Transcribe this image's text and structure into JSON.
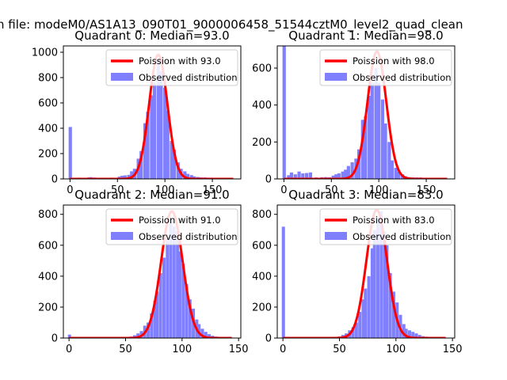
{
  "figure": {
    "suptitle": "n file: modeM0/AS1A13_090T01_9000006458_51544cztM0_level2_quad_clean"
  },
  "legend": {
    "observed_label": "Observed distribution"
  },
  "colors": {
    "poisson_line": "#ff0000",
    "histogram": "#8080ff",
    "axis": "#000000"
  },
  "chart_data": [
    {
      "type": "bar",
      "title": "Quadrant 0: Median=93.0",
      "poisson_label": "Poission with 93.0",
      "median": 93.0,
      "bin_width": 3.5,
      "xlim": [
        -7,
        180
      ],
      "ylim": [
        0,
        1050
      ],
      "xticks": [
        0,
        50,
        100,
        150
      ],
      "yticks": [
        0,
        200,
        400,
        600,
        800,
        1000
      ],
      "zero_bin": 410,
      "curve_peak": 980,
      "curve_sigma": 9.6,
      "hist": [
        [
          10,
          10
        ],
        [
          20,
          12
        ],
        [
          22,
          14
        ],
        [
          26,
          11
        ],
        [
          30,
          9
        ],
        [
          34,
          8
        ],
        [
          40,
          9
        ],
        [
          44,
          10
        ],
        [
          48,
          9
        ],
        [
          52,
          18
        ],
        [
          55,
          25
        ],
        [
          58,
          28
        ],
        [
          62,
          32
        ],
        [
          65,
          60
        ],
        [
          68,
          80
        ],
        [
          72,
          160
        ],
        [
          75,
          220
        ],
        [
          79,
          440
        ],
        [
          82,
          530
        ],
        [
          86,
          660
        ],
        [
          89,
          760
        ],
        [
          93,
          940
        ],
        [
          96,
          850
        ],
        [
          100,
          720
        ],
        [
          103,
          540
        ],
        [
          107,
          300
        ],
        [
          110,
          230
        ],
        [
          114,
          130
        ],
        [
          117,
          80
        ],
        [
          121,
          60
        ],
        [
          124,
          40
        ],
        [
          128,
          30
        ],
        [
          131,
          20
        ],
        [
          135,
          15
        ],
        [
          138,
          12
        ],
        [
          142,
          12
        ],
        [
          145,
          10
        ],
        [
          149,
          10
        ],
        [
          152,
          9
        ],
        [
          156,
          8
        ],
        [
          159,
          8
        ],
        [
          163,
          8
        ]
      ]
    },
    {
      "type": "bar",
      "title": "Quadrant 1: Median=98.0",
      "poisson_label": "Poission with 98.0",
      "median": 98.0,
      "bin_width": 3.5,
      "xlim": [
        -7,
        180
      ],
      "ylim": [
        0,
        720
      ],
      "xticks": [
        0,
        50,
        100,
        150
      ],
      "yticks": [
        0,
        200,
        400,
        600
      ],
      "zero_bin": 720,
      "curve_peak": 690,
      "curve_sigma": 9.9,
      "hist": [
        [
          5,
          20
        ],
        [
          8,
          35
        ],
        [
          12,
          25
        ],
        [
          16,
          40
        ],
        [
          20,
          30
        ],
        [
          24,
          32
        ],
        [
          28,
          35
        ],
        [
          34,
          8
        ],
        [
          40,
          9
        ],
        [
          44,
          10
        ],
        [
          48,
          9
        ],
        [
          52,
          18
        ],
        [
          55,
          25
        ],
        [
          58,
          30
        ],
        [
          62,
          40
        ],
        [
          65,
          50
        ],
        [
          68,
          70
        ],
        [
          72,
          90
        ],
        [
          76,
          110
        ],
        [
          79,
          160
        ],
        [
          83,
          320
        ],
        [
          86,
          340
        ],
        [
          90,
          450
        ],
        [
          93,
          520
        ],
        [
          97,
          600
        ],
        [
          100,
          520
        ],
        [
          104,
          430
        ],
        [
          107,
          300
        ],
        [
          111,
          200
        ],
        [
          114,
          100
        ],
        [
          118,
          60
        ],
        [
          121,
          40
        ],
        [
          125,
          25
        ],
        [
          128,
          15
        ],
        [
          132,
          10
        ],
        [
          136,
          8
        ],
        [
          140,
          8
        ],
        [
          144,
          8
        ],
        [
          148,
          6
        ],
        [
          152,
          6
        ],
        [
          156,
          5
        ]
      ]
    },
    {
      "type": "bar",
      "title": "Quadrant 2: Median=91.0",
      "poisson_label": "Poission with 91.0",
      "median": 91.0,
      "bin_width": 2.8,
      "xlim": [
        -5,
        152
      ],
      "ylim": [
        0,
        860
      ],
      "xticks": [
        0,
        50,
        100,
        150
      ],
      "yticks": [
        0,
        200,
        400,
        600,
        800
      ],
      "zero_bin": 22,
      "curve_peak": 820,
      "curve_sigma": 9.5,
      "hist": [
        [
          4,
          5
        ],
        [
          10,
          4
        ],
        [
          20,
          4
        ],
        [
          30,
          4
        ],
        [
          40,
          5
        ],
        [
          48,
          6
        ],
        [
          52,
          8
        ],
        [
          55,
          10
        ],
        [
          58,
          18
        ],
        [
          61,
          30
        ],
        [
          64,
          45
        ],
        [
          67,
          80
        ],
        [
          70,
          100
        ],
        [
          73,
          160
        ],
        [
          76,
          240
        ],
        [
          78,
          300
        ],
        [
          81,
          420
        ],
        [
          84,
          520
        ],
        [
          87,
          640
        ],
        [
          90,
          760
        ],
        [
          93,
          720
        ],
        [
          96,
          690
        ],
        [
          98,
          560
        ],
        [
          101,
          480
        ],
        [
          104,
          350
        ],
        [
          107,
          250
        ],
        [
          110,
          190
        ],
        [
          113,
          120
        ],
        [
          115,
          90
        ],
        [
          118,
          60
        ],
        [
          121,
          40
        ],
        [
          124,
          25
        ],
        [
          127,
          15
        ],
        [
          130,
          10
        ],
        [
          133,
          8
        ],
        [
          136,
          6
        ],
        [
          139,
          5
        ]
      ]
    },
    {
      "type": "bar",
      "title": "Quadrant 3: Median=83.0",
      "poisson_label": "Poission with 83.0",
      "median": 83.0,
      "bin_width": 2.8,
      "xlim": [
        -5,
        152
      ],
      "ylim": [
        0,
        860
      ],
      "xticks": [
        0,
        50,
        100,
        150
      ],
      "yticks": [
        0,
        200,
        400,
        600,
        800
      ],
      "zero_bin": 720,
      "curve_peak": 830,
      "curve_sigma": 9.1,
      "hist": [
        [
          4,
          5
        ],
        [
          10,
          4
        ],
        [
          20,
          4
        ],
        [
          30,
          4
        ],
        [
          40,
          5
        ],
        [
          46,
          8
        ],
        [
          50,
          10
        ],
        [
          53,
          20
        ],
        [
          56,
          30
        ],
        [
          59,
          50
        ],
        [
          62,
          70
        ],
        [
          65,
          100
        ],
        [
          68,
          170
        ],
        [
          71,
          250
        ],
        [
          73,
          320
        ],
        [
          76,
          400
        ],
        [
          79,
          580
        ],
        [
          81,
          700
        ],
        [
          84,
          780
        ],
        [
          87,
          820
        ],
        [
          90,
          690
        ],
        [
          92,
          600
        ],
        [
          95,
          420
        ],
        [
          98,
          300
        ],
        [
          101,
          230
        ],
        [
          104,
          150
        ],
        [
          107,
          90
        ],
        [
          109,
          60
        ],
        [
          112,
          50
        ],
        [
          115,
          40
        ],
        [
          118,
          30
        ],
        [
          121,
          20
        ],
        [
          124,
          12
        ],
        [
          127,
          9
        ],
        [
          130,
          7
        ],
        [
          134,
          5
        ]
      ]
    }
  ]
}
